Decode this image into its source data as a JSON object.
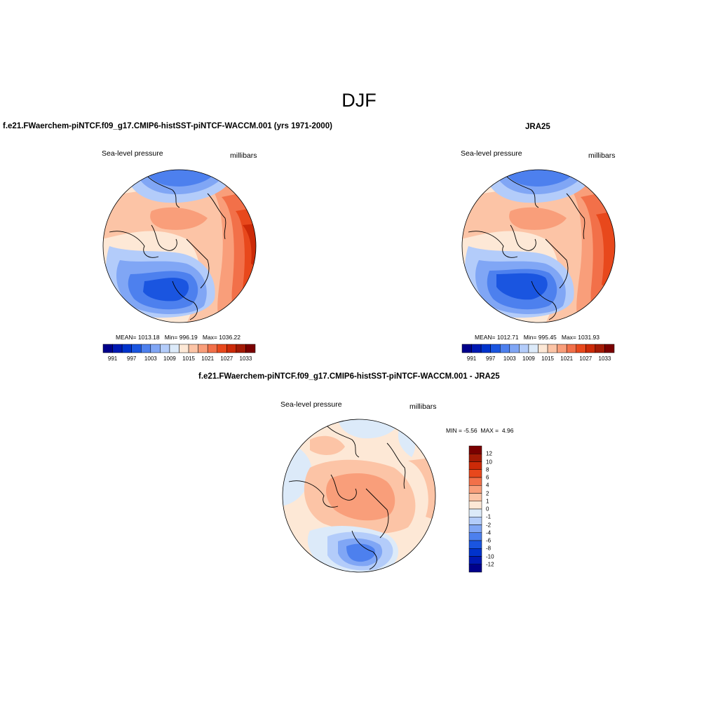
{
  "figure": {
    "season": "DJF"
  },
  "panels": {
    "model": {
      "title": "f.e21.FWaerchem-piNTCF.f09_g17.CMIP6-histSST-piNTCF-WACCM.001 (yrs 1971-2000)",
      "variable": "Sea-level pressure",
      "units": "millibars",
      "mean_label": "MEAN=",
      "mean": "1013.18",
      "min_label": "Min=",
      "min": "996.19",
      "max_label": "Max=",
      "max": "1036.22"
    },
    "obs": {
      "title": "JRA25",
      "variable": "Sea-level pressure",
      "units": "millibars",
      "mean_label": "MEAN=",
      "mean": "1012.71",
      "min_label": "Min=",
      "min": "995.45",
      "max_label": "Max=",
      "max": "1031.93"
    },
    "diff": {
      "title": "f.e21.FWaerchem-piNTCF.f09_g17.CMIP6-histSST-piNTCF-WACCM.001 - JRA25",
      "variable": "Sea-level pressure",
      "units": "millibars",
      "min_label": "MIN =",
      "min": "-5.56",
      "max_label": "MAX =",
      "max": "4.96"
    }
  },
  "colorbar_abs": {
    "colors": [
      "#00008b",
      "#0019b3",
      "#0033cc",
      "#1a55e0",
      "#4d80ee",
      "#80a6f5",
      "#b3ccfa",
      "#dceaf9",
      "#fde8d6",
      "#fcc4a6",
      "#f99e7a",
      "#f27049",
      "#e8481c",
      "#cc2a08",
      "#a31a05",
      "#7a0000"
    ],
    "tick_labels": [
      "991",
      "997",
      "1003",
      "1009",
      "1015",
      "1021",
      "1027",
      "1033"
    ]
  },
  "colorbar_diff": {
    "colors": [
      "#7a0000",
      "#a31a05",
      "#cc2a08",
      "#e8481c",
      "#f27049",
      "#f99e7a",
      "#fcc4a6",
      "#fde8d6",
      "#dceaf9",
      "#b3ccfa",
      "#80a6f5",
      "#4d80ee",
      "#1a55e0",
      "#0033cc",
      "#0019b3",
      "#00008b"
    ],
    "tick_labels": [
      "12",
      "10",
      "8",
      "6",
      "4",
      "2",
      "1",
      "0",
      "-1",
      "-2",
      "-4",
      "-6",
      "-8",
      "-10",
      "-12"
    ]
  },
  "map_colors": {
    "low_deep": "#1a55e0",
    "low_mid": "#4d80ee",
    "low_light": "#80a6f5",
    "low_pale": "#b3ccfa",
    "near_neg": "#dceaf9",
    "near_pos": "#fde8d6",
    "high_pale": "#fcc4a6",
    "high_light": "#f99e7a",
    "high_mid": "#f27049",
    "high_deep": "#e8481c",
    "high_max": "#cc2a08",
    "peak": "#a31a05"
  }
}
